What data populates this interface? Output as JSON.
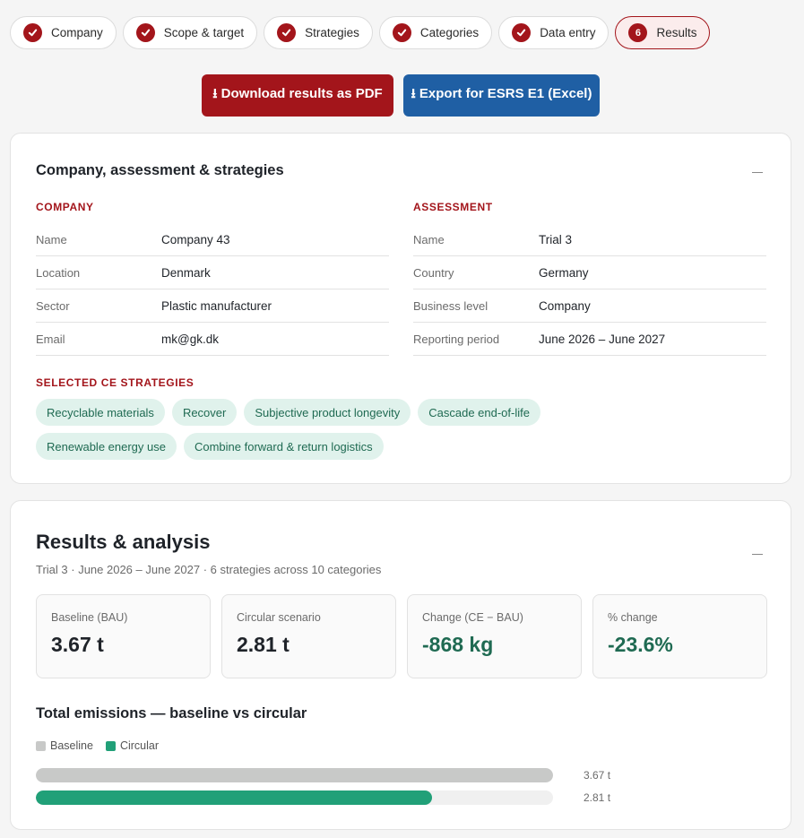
{
  "stepper": {
    "steps": [
      {
        "label": "Company",
        "done": true
      },
      {
        "label": "Scope & target",
        "done": true
      },
      {
        "label": "Strategies",
        "done": true
      },
      {
        "label": "Categories",
        "done": true
      },
      {
        "label": "Data entry",
        "done": true
      },
      {
        "label": "Results",
        "number": "6",
        "current": true
      }
    ]
  },
  "actions": {
    "pdf_label": "⭳ Download results as PDF",
    "excel_label": "⭳ Export for ESRS E1 (Excel)"
  },
  "summary": {
    "title": "Company, assessment & strategies",
    "company": {
      "heading": "COMPANY",
      "rows": [
        {
          "key": "Name",
          "value": "Company 43"
        },
        {
          "key": "Location",
          "value": "Denmark"
        },
        {
          "key": "Sector",
          "value": "Plastic manufacturer"
        },
        {
          "key": "Email",
          "value": "mk@gk.dk"
        }
      ]
    },
    "assessment": {
      "heading": "ASSESSMENT",
      "rows": [
        {
          "key": "Name",
          "value": "Trial 3"
        },
        {
          "key": "Country",
          "value": "Germany"
        },
        {
          "key": "Business level",
          "value": "Company"
        },
        {
          "key": "Reporting period",
          "value": "June 2026 – June 2027"
        }
      ]
    },
    "strategies": {
      "heading": "SELECTED CE STRATEGIES",
      "items": [
        "Recyclable materials",
        "Recover",
        "Subjective product longevity",
        "Cascade end-of-life",
        "Renewable energy use",
        "Combine forward & return logistics"
      ]
    }
  },
  "results": {
    "title": "Results & analysis",
    "subtitle": "Trial 3 · June 2026 – June 2027 · 6 strategies across 10 categories",
    "stats": [
      {
        "label": "Baseline (BAU)",
        "value": "3.67 t"
      },
      {
        "label": "Circular scenario",
        "value": "2.81 t"
      },
      {
        "label": "Change (CE − BAU)",
        "value": "-868 kg"
      },
      {
        "label": "% change",
        "value": "-23.6%"
      }
    ],
    "chart_title": "Total emissions — baseline vs circular"
  },
  "chart_data": {
    "type": "bar",
    "orientation": "horizontal",
    "title": "Total emissions — baseline vs circular",
    "legend_position": "top-left",
    "series": [
      {
        "name": "Baseline",
        "value": 3.67,
        "label": "3.67 t",
        "color": "#c8c9c8"
      },
      {
        "name": "Circular",
        "value": 2.81,
        "label": "2.81 t",
        "color": "#21a078"
      }
    ],
    "xlim": [
      0,
      3.67
    ]
  },
  "colors": {
    "brand_red": "#a3151b",
    "brand_blue": "#1f5fa4",
    "positive_green": "#1f6a52"
  }
}
